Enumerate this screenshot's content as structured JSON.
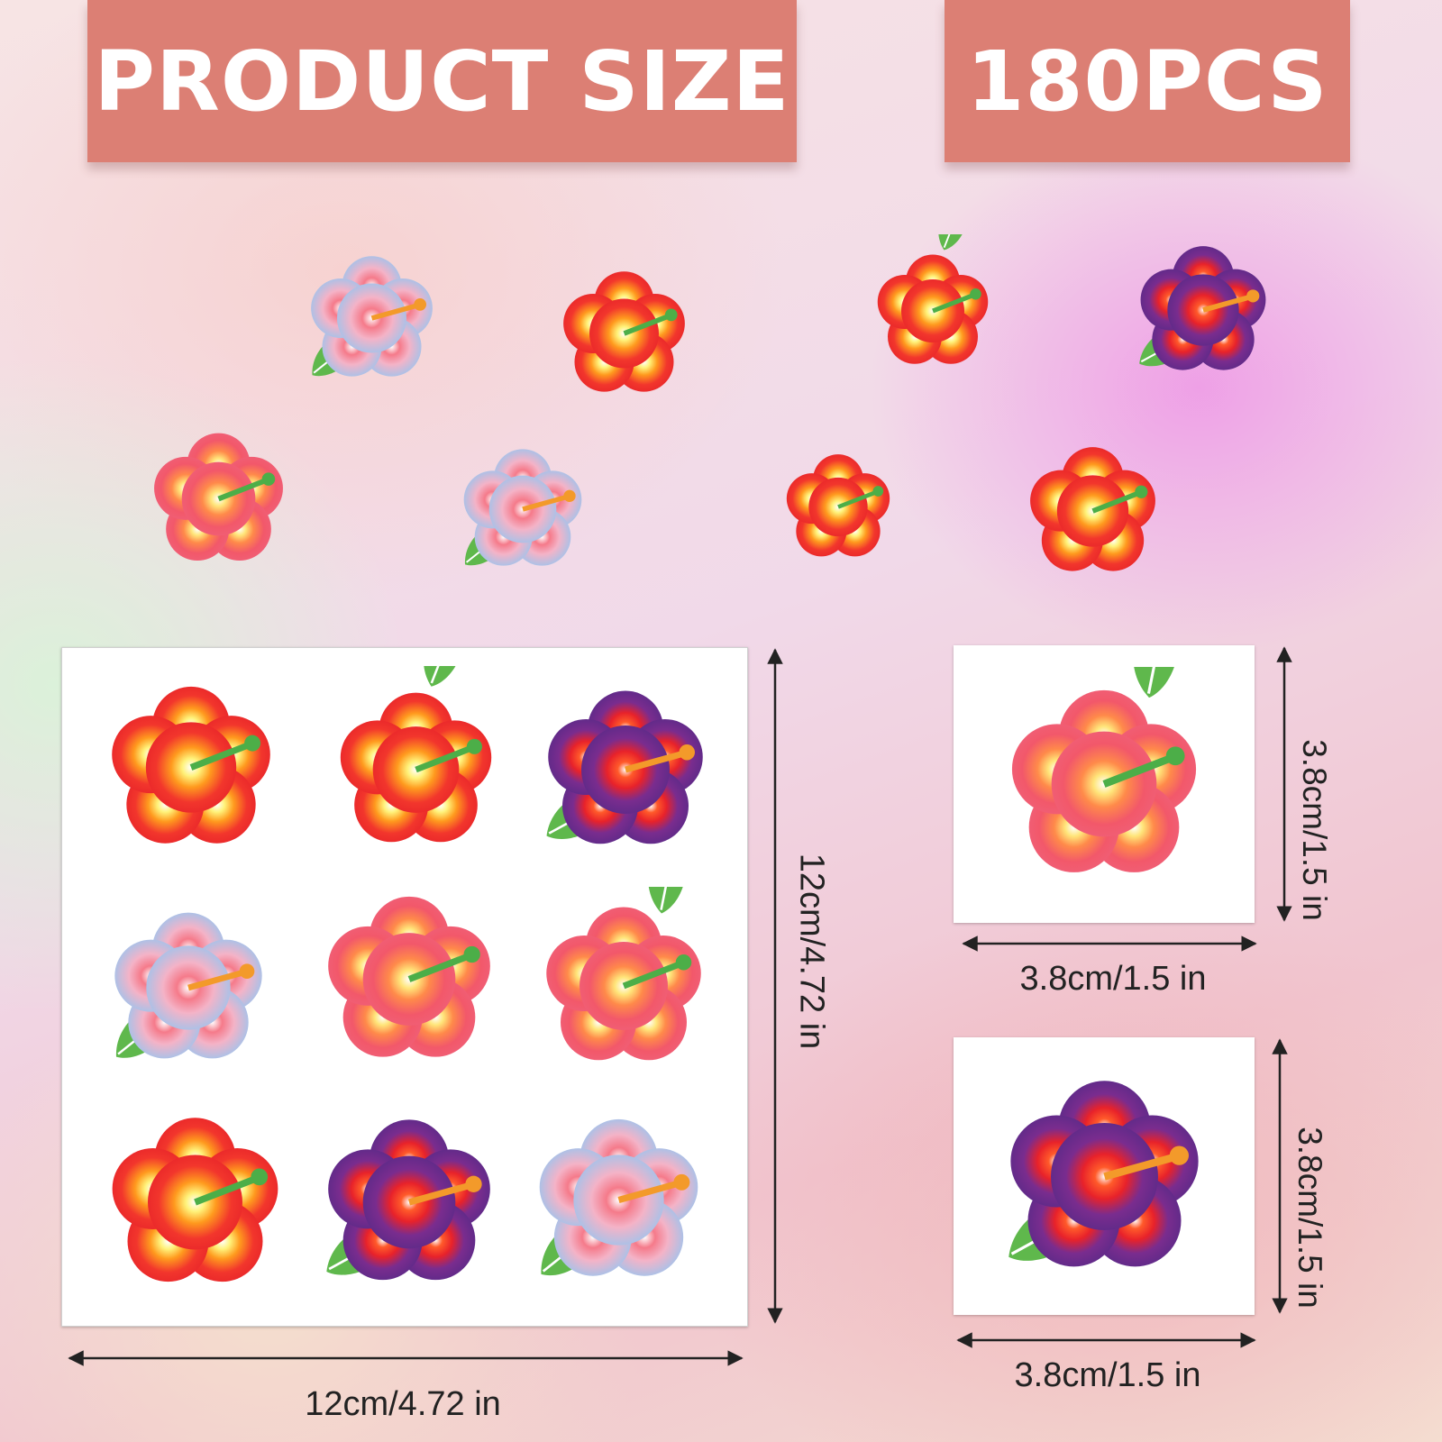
{
  "banners": {
    "left": "PRODUCT SIZE",
    "right": "180PCS"
  },
  "sheet": {
    "width_label": "12cm/4.72 in",
    "height_label": "12cm/4.72 in"
  },
  "tattoo_single_1": {
    "width_label": "3.8cm/1.5 in",
    "height_label": "3.8cm/1.5 in"
  },
  "tattoo_single_2": {
    "width_label": "3.8cm/1.5 in",
    "height_label": "3.8cm/1.5 in"
  },
  "colors": {
    "banner": "#dc7f74",
    "red_flower": "#f2443a",
    "coral_flower": "#f0606a",
    "purple_flower": "#6b2c8c",
    "blue_flower": "#a8c8ee",
    "leaf": "#5fb84c"
  },
  "icons": [
    "hibiscus-red-icon",
    "hibiscus-purple-icon",
    "hibiscus-blue-icon",
    "leaf-icon",
    "arrow-icon"
  ]
}
